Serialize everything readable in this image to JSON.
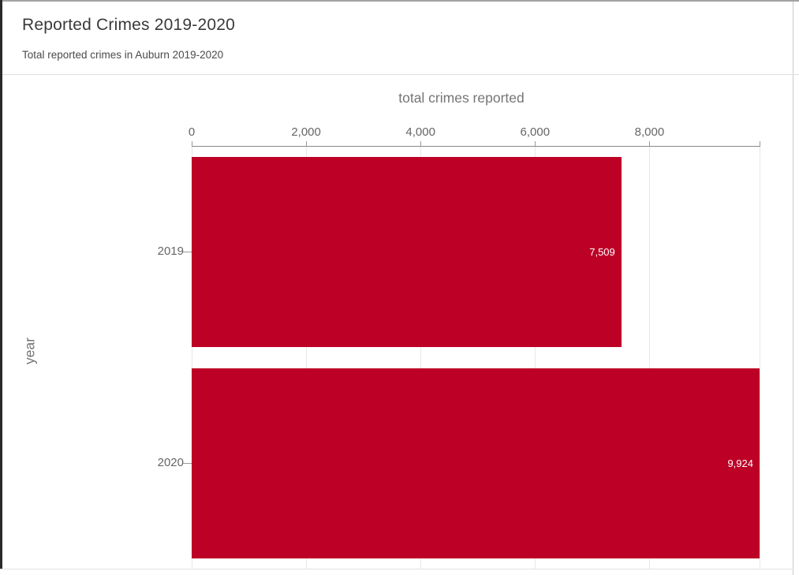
{
  "header": {
    "title": "Reported Crimes 2019-2020",
    "subtitle": "Total reported crimes in Auburn 2019-2020"
  },
  "chart_data": {
    "type": "bar",
    "orientation": "horizontal",
    "title": "Reported Crimes 2019-2020",
    "subtitle": "Total reported crimes in Auburn 2019-2020",
    "xlabel": "total crimes reported",
    "ylabel": "year",
    "axis_position": "top",
    "categories": [
      "2019",
      "2020"
    ],
    "values": [
      7509,
      9924
    ],
    "value_labels": [
      "7,509",
      "9,924"
    ],
    "x_ticks": [
      0,
      2000,
      4000,
      6000,
      8000
    ],
    "x_tick_labels": [
      "0",
      "2,000",
      "4,000",
      "6,000",
      "8,000"
    ],
    "xlim": [
      0,
      9924
    ],
    "grid": true,
    "legend": "none",
    "colors": {
      "bar": "#bd0026",
      "bar_label": "#ffffff",
      "axis_text": "#666666",
      "axis_line": "#888888",
      "gridline": "#e8e8e8"
    }
  }
}
